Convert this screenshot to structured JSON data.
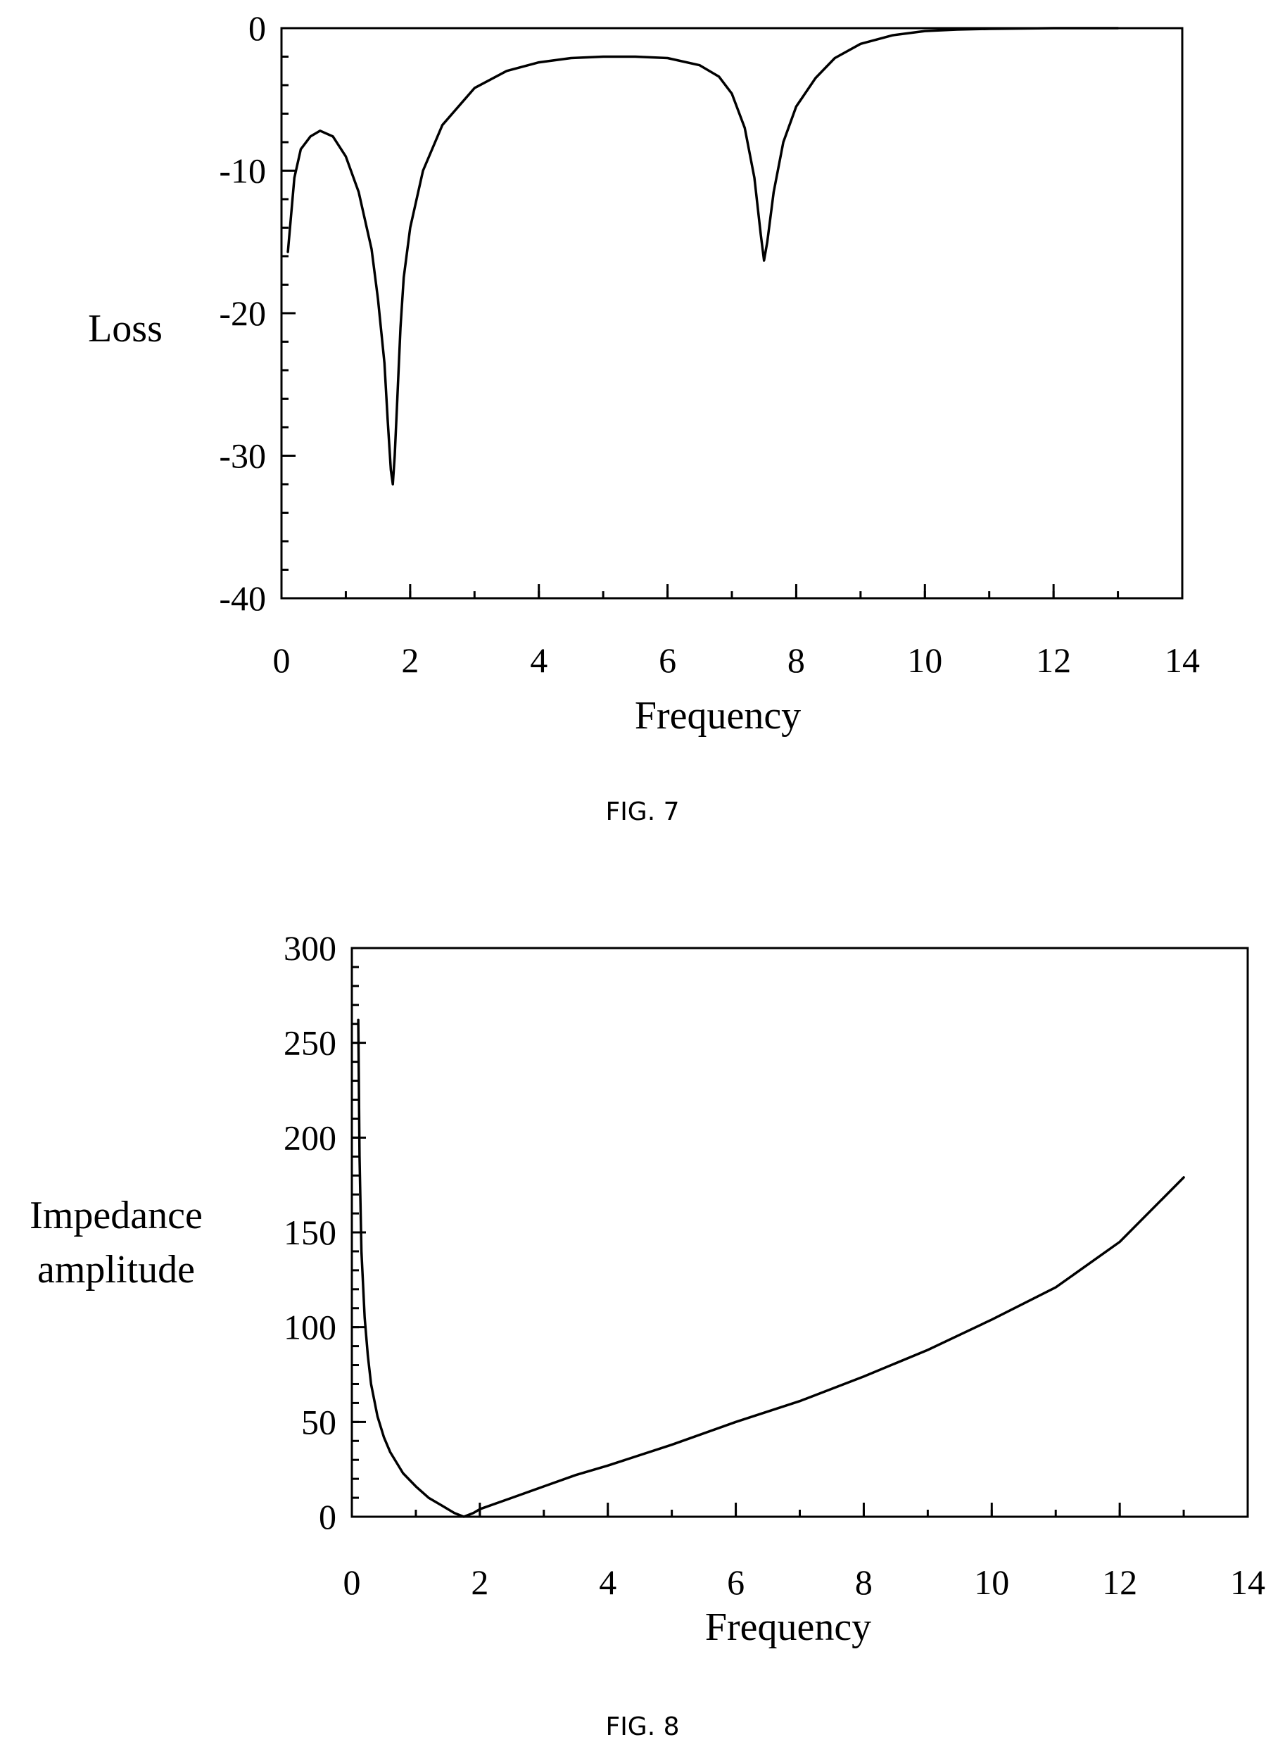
{
  "chart_data": [
    {
      "type": "line",
      "caption": "FIG. 7",
      "xlabel": "Frequency",
      "ylabel": "Loss",
      "xlim": [
        0,
        14
      ],
      "ylim": [
        -40,
        0
      ],
      "xticks": [
        0,
        2,
        4,
        6,
        8,
        10,
        12,
        14
      ],
      "yticks": [
        0,
        -10,
        -20,
        -30,
        -40
      ],
      "grid": false,
      "series": [
        {
          "x": [
            0.1,
            0.2,
            0.3,
            0.45,
            0.6,
            0.8,
            1.0,
            1.2,
            1.4,
            1.5,
            1.6,
            1.65,
            1.7,
            1.73,
            1.76,
            1.8,
            1.85,
            1.9,
            2.0,
            2.2,
            2.5,
            3.0,
            3.5,
            4.0,
            4.5,
            5.0,
            5.5,
            6.0,
            6.5,
            6.8,
            7.0,
            7.2,
            7.35,
            7.45,
            7.5,
            7.55,
            7.65,
            7.8,
            8.0,
            8.3,
            8.6,
            9.0,
            9.5,
            10.0,
            10.5,
            11.0,
            12.0,
            13.0
          ],
          "y": [
            -15.7,
            -10.5,
            -8.5,
            -7.6,
            -7.2,
            -7.6,
            -9.0,
            -11.5,
            -15.5,
            -19.0,
            -23.5,
            -27.5,
            -31.0,
            -32.0,
            -30.0,
            -26.0,
            -21.0,
            -17.5,
            -14.0,
            -10.0,
            -6.8,
            -4.2,
            -3.0,
            -2.4,
            -2.1,
            -2.0,
            -2.0,
            -2.1,
            -2.6,
            -3.4,
            -4.6,
            -7.0,
            -10.5,
            -14.5,
            -16.3,
            -15.0,
            -11.5,
            -8.0,
            -5.5,
            -3.5,
            -2.1,
            -1.1,
            -0.5,
            -0.2,
            -0.1,
            -0.05,
            0.0,
            0.0
          ]
        }
      ]
    },
    {
      "type": "line",
      "caption": "FIG. 8",
      "xlabel": "Frequency",
      "ylabel": [
        "Impedance",
        "amplitude"
      ],
      "xlim": [
        0,
        14
      ],
      "ylim": [
        0,
        300
      ],
      "xticks": [
        0,
        2,
        4,
        6,
        8,
        10,
        12,
        14
      ],
      "yticks": [
        0,
        50,
        100,
        150,
        200,
        250,
        300
      ],
      "grid": false,
      "series": [
        {
          "x": [
            0.1,
            0.12,
            0.15,
            0.2,
            0.25,
            0.3,
            0.4,
            0.5,
            0.6,
            0.8,
            1.0,
            1.2,
            1.4,
            1.6,
            1.75,
            1.9,
            2.0,
            2.5,
            3.0,
            3.5,
            4.0,
            5.0,
            6.0,
            7.0,
            8.0,
            9.0,
            10.0,
            11.0,
            12.0,
            13.0
          ],
          "y": [
            262,
            190,
            140,
            105,
            85,
            70,
            53,
            42,
            34,
            23,
            16,
            10,
            6,
            2,
            0,
            2,
            4,
            10,
            16,
            22,
            27,
            38,
            50,
            61,
            74,
            88,
            104,
            121,
            145,
            179
          ]
        }
      ]
    }
  ]
}
